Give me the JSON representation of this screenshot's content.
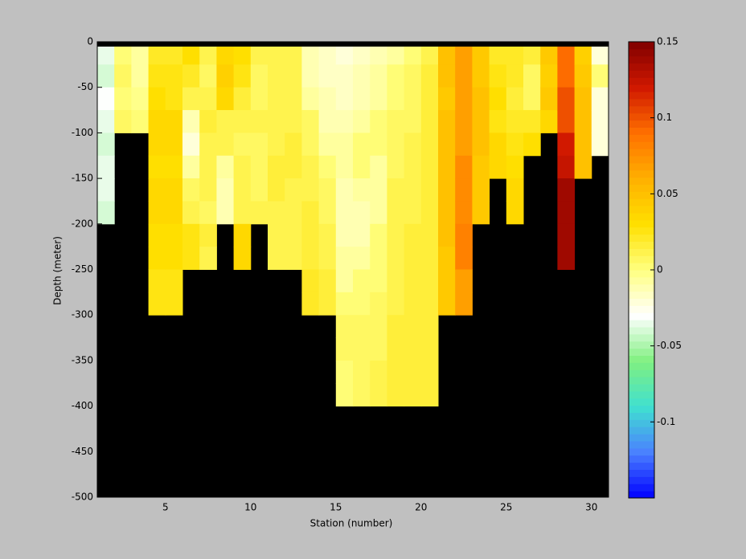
{
  "chart_data": {
    "type": "heatmap",
    "xlabel": "Station (number)",
    "ylabel": "Depth (meter)",
    "x": [
      1,
      2,
      3,
      4,
      5,
      6,
      7,
      8,
      9,
      10,
      11,
      12,
      13,
      14,
      15,
      16,
      17,
      18,
      19,
      20,
      21,
      22,
      23,
      24,
      25,
      26,
      27,
      28,
      29,
      30,
      31
    ],
    "y": [
      0,
      -25,
      -50,
      -75,
      -100,
      -125,
      -150,
      -175,
      -200,
      -225,
      -250,
      -275,
      -300,
      -325,
      -350,
      -375,
      -400,
      -425,
      -450,
      -475,
      -500
    ],
    "z": [
      [
        -0.035,
        -0.04,
        -0.03,
        -0.035,
        -0.04,
        -0.035,
        -0.035,
        -0.04,
        null,
        null,
        null,
        null,
        null,
        null,
        null,
        null,
        null,
        null,
        null,
        null
      ],
      [
        0,
        0.005,
        0,
        0.005,
        null,
        null,
        null,
        null,
        null,
        null,
        null,
        null,
        null,
        null,
        null,
        null,
        null,
        null,
        null,
        null
      ],
      [
        -0.005,
        -0.005,
        -0.003,
        0,
        null,
        null,
        null,
        null,
        null,
        null,
        null,
        null,
        null,
        null,
        null,
        null,
        null,
        null,
        null,
        null
      ],
      [
        0.02,
        0.025,
        0.03,
        0.035,
        0.035,
        0.03,
        0.035,
        0.035,
        0.03,
        0.03,
        0.025,
        0.025,
        null,
        null,
        null,
        null,
        null,
        null,
        null,
        null
      ],
      [
        0.02,
        0.025,
        0.025,
        0.035,
        0.035,
        0.03,
        0.035,
        0.035,
        0.03,
        0.03,
        0.025,
        0.025,
        null,
        null,
        null,
        null,
        null,
        null,
        null,
        null
      ],
      [
        0.03,
        0.02,
        0.01,
        -0.01,
        -0.02,
        -0.005,
        0.005,
        0.01,
        0.025,
        0.025,
        null,
        null,
        null,
        null,
        null,
        null,
        null,
        null,
        null,
        null
      ],
      [
        0.01,
        0.005,
        0.01,
        0.015,
        0.01,
        0.01,
        0.01,
        0.005,
        0.015,
        0.01,
        null,
        null,
        null,
        null,
        null,
        null,
        null,
        null,
        null,
        null
      ],
      [
        0.035,
        0.04,
        0.035,
        0.01,
        0.01,
        -0.005,
        -0.01,
        -0.01,
        null,
        null,
        null,
        null,
        null,
        null,
        null,
        null,
        null,
        null,
        null,
        null
      ],
      [
        0.03,
        0.025,
        0.015,
        0.01,
        0.005,
        0.01,
        0.01,
        0.01,
        0.035,
        0.035,
        null,
        null,
        null,
        null,
        null,
        null,
        null,
        null,
        null,
        null
      ],
      [
        0.01,
        0.005,
        0.005,
        0.01,
        0.005,
        0.005,
        0.005,
        0.01,
        null,
        null,
        null,
        null,
        null,
        null,
        null,
        null,
        null,
        null,
        null,
        null
      ],
      [
        0.01,
        0.01,
        0.01,
        0.01,
        0.01,
        0.015,
        0.015,
        0.01,
        0.01,
        0.01,
        null,
        null,
        null,
        null,
        null,
        null,
        null,
        null,
        null,
        null
      ],
      [
        0.01,
        0.01,
        0.01,
        0.01,
        0.015,
        0.015,
        0.01,
        0.01,
        0.01,
        0.01,
        null,
        null,
        null,
        null,
        null,
        null,
        null,
        null,
        null,
        null
      ],
      [
        -0.01,
        -0.01,
        -0.005,
        0.005,
        0.005,
        0.01,
        0.01,
        0.015,
        0.015,
        0.015,
        0.02,
        0.02,
        null,
        null,
        null,
        null,
        null,
        null,
        null,
        null
      ],
      [
        -0.015,
        -0.015,
        -0.01,
        -0.01,
        -0.005,
        0,
        0.005,
        0.005,
        0.01,
        0.01,
        0.015,
        0.015,
        null,
        null,
        null,
        null,
        null,
        null,
        null,
        null
      ],
      [
        -0.02,
        -0.015,
        -0.015,
        -0.01,
        -0.005,
        -0.005,
        -0.01,
        -0.01,
        -0.01,
        -0.005,
        -0.005,
        0,
        0.005,
        0.005,
        0.003,
        0.003,
        null,
        null,
        null,
        null
      ],
      [
        -0.015,
        -0.01,
        -0.01,
        -0.005,
        0,
        0,
        -0.005,
        -0.01,
        -0.01,
        -0.005,
        0,
        0,
        0.005,
        0.005,
        0.005,
        0.005,
        null,
        null,
        null,
        null
      ],
      [
        -0.01,
        -0.005,
        -0.005,
        0,
        0,
        -0.005,
        -0.005,
        -0.005,
        0,
        0,
        0,
        0.005,
        0.005,
        0.005,
        0.01,
        0.01,
        null,
        null,
        null,
        null
      ],
      [
        -0.005,
        0,
        0,
        0.005,
        0.005,
        0.005,
        0.01,
        0.01,
        0.01,
        0.01,
        0.01,
        0.01,
        0.015,
        0.015,
        0.015,
        0.015,
        null,
        null,
        null,
        null
      ],
      [
        0,
        0.005,
        0.005,
        0.005,
        0.01,
        0.01,
        0.01,
        0.01,
        0.015,
        0.015,
        0.015,
        0.015,
        0.015,
        0.015,
        0.015,
        0.015,
        null,
        null,
        null,
        null
      ],
      [
        0.01,
        0.015,
        0.015,
        0.015,
        0.015,
        0.015,
        0.015,
        0.015,
        0.015,
        0.015,
        0.015,
        0.015,
        0.015,
        0.015,
        0.015,
        0.015,
        null,
        null,
        null,
        null
      ],
      [
        0.05,
        0.05,
        0.045,
        0.05,
        0.05,
        0.05,
        0.05,
        0.05,
        0.05,
        0.045,
        0.045,
        0.045,
        null,
        null,
        null,
        null,
        null,
        null,
        null,
        null
      ],
      [
        0.07,
        0.07,
        0.07,
        0.07,
        0.07,
        0.075,
        0.075,
        0.075,
        0.08,
        0.08,
        0.07,
        0.07,
        null,
        null,
        null,
        null,
        null,
        null,
        null,
        null
      ],
      [
        0.045,
        0.045,
        0.05,
        0.05,
        0.05,
        0.045,
        0.045,
        0.045,
        null,
        null,
        null,
        null,
        null,
        null,
        null,
        null,
        null,
        null,
        null,
        null
      ],
      [
        0.02,
        0.025,
        0.03,
        0.025,
        0.035,
        0.035,
        null,
        null,
        null,
        null,
        null,
        null,
        null,
        null,
        null,
        null,
        null,
        null,
        null,
        null
      ],
      [
        0.02,
        0.02,
        0.015,
        0.02,
        0.025,
        0.03,
        0.035,
        0.035,
        null,
        null,
        null,
        null,
        null,
        null,
        null,
        null,
        null,
        null,
        null,
        null
      ],
      [
        0.015,
        0.005,
        0.005,
        0.02,
        0.03,
        null,
        null,
        null,
        null,
        null,
        null,
        null,
        null,
        null,
        null,
        null,
        null,
        null,
        null,
        null
      ],
      [
        0.045,
        0.04,
        0.045,
        0.035,
        null,
        null,
        null,
        null,
        null,
        null,
        null,
        null,
        null,
        null,
        null,
        null,
        null,
        null,
        null,
        null
      ],
      [
        0.09,
        0.09,
        0.1,
        0.1,
        0.12,
        0.125,
        0.14,
        0.14,
        0.14,
        0.14,
        null,
        null,
        null,
        null,
        null,
        null,
        null,
        null,
        null,
        null
      ],
      [
        0.04,
        0.045,
        0.05,
        0.05,
        0.05,
        0.05,
        null,
        null,
        null,
        null,
        null,
        null,
        null,
        null,
        null,
        null,
        null,
        null,
        null,
        null
      ],
      [
        -0.02,
        0,
        -0.02,
        -0.02,
        -0.02,
        null,
        null,
        null,
        null,
        null,
        null,
        null,
        null,
        null,
        null,
        null,
        null,
        null,
        null,
        null
      ]
    ],
    "xlim": [
      1,
      31
    ],
    "ylim": [
      -500,
      0
    ],
    "xticks": [
      5,
      10,
      15,
      20,
      25,
      30
    ],
    "yticks": [
      0,
      -50,
      -100,
      -150,
      -200,
      -250,
      -300,
      -350,
      -400,
      -450,
      -500
    ],
    "clim": [
      -0.15,
      0.15
    ],
    "cticks": [
      0.15,
      0.1,
      0.05,
      0,
      -0.05,
      -0.1
    ],
    "colormap": [
      "#0000ff",
      "#4a80ff",
      "#40e0d0",
      "#80f080",
      "#ffffff",
      "#ffff80",
      "#ffe000",
      "#ffb000",
      "#ff7000",
      "#d01800",
      "#800000"
    ],
    "missing_color": "#000000",
    "colorbar_steps": 64
  }
}
